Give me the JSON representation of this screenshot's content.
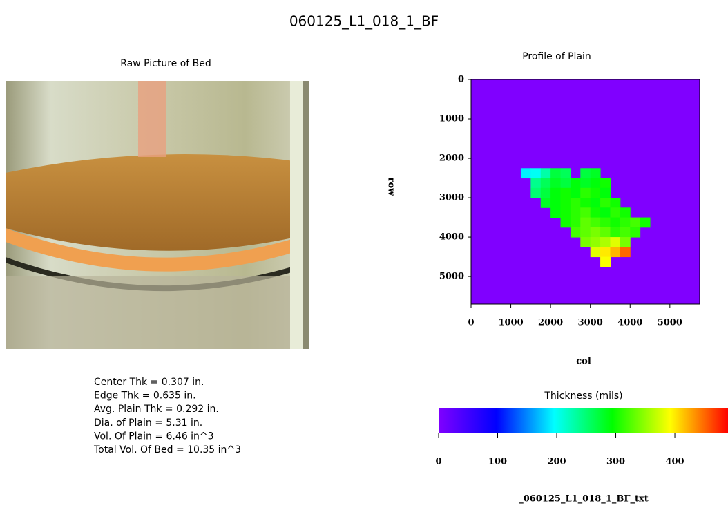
{
  "title": "060125_L1_018_1_BF",
  "photo": {
    "title": "Raw Picture of Bed"
  },
  "stats": [
    "Center Thk = 0.307 in.",
    "Edge Thk = 0.635 in.",
    "Avg. Plain Thk = 0.292 in.",
    "Dia. of Plain = 5.31 in.",
    "Vol. Of Plain = 6.46 in^3",
    "Total Vol. Of Bed = 10.35 in^3"
  ],
  "chart_data": {
    "type": "heatmap",
    "title": "Profile of Plain",
    "xlabel": "col",
    "ylabel": "row",
    "xlim": [
      0,
      5750
    ],
    "ylim": [
      0,
      5700
    ],
    "y_inverted": true,
    "xticks": [
      0,
      1000,
      2000,
      3000,
      4000,
      5000
    ],
    "yticks": [
      0,
      1000,
      2000,
      3000,
      4000,
      5000
    ],
    "cell": 250,
    "x": [
      1250,
      1500,
      1750,
      2000,
      2250,
      2500,
      2750,
      3000,
      3250,
      3500,
      3750,
      4000,
      4250
    ],
    "y": [
      2250,
      2500,
      2750,
      3000,
      3250,
      3500,
      3750,
      4000,
      4250,
      4500
    ],
    "z": [
      [
        190,
        200,
        230,
        270,
        260,
        null,
        270,
        280,
        null,
        null,
        null,
        null,
        null
      ],
      [
        null,
        240,
        260,
        280,
        270,
        290,
        280,
        290,
        300,
        null,
        null,
        null,
        null
      ],
      [
        null,
        250,
        270,
        290,
        300,
        290,
        310,
        300,
        290,
        null,
        null,
        null,
        null
      ],
      [
        null,
        null,
        280,
        290,
        300,
        310,
        300,
        290,
        310,
        300,
        null,
        null,
        null
      ],
      [
        null,
        null,
        null,
        290,
        300,
        310,
        320,
        300,
        290,
        310,
        300,
        null,
        null
      ],
      [
        null,
        null,
        null,
        null,
        300,
        310,
        330,
        320,
        310,
        300,
        310,
        320,
        300
      ],
      [
        null,
        null,
        null,
        null,
        null,
        320,
        330,
        340,
        330,
        310,
        320,
        310,
        null
      ],
      [
        null,
        null,
        null,
        null,
        null,
        null,
        340,
        350,
        360,
        380,
        340,
        null,
        null
      ],
      [
        null,
        null,
        null,
        null,
        null,
        null,
        null,
        380,
        400,
        420,
        450,
        null,
        null
      ],
      [
        null,
        null,
        null,
        null,
        null,
        null,
        null,
        null,
        390,
        null,
        null,
        null,
        null
      ]
    ],
    "colormap": [
      "#8000ff",
      "#0000ff",
      "#00ffff",
      "#00ff00",
      "#ffff00",
      "#ff0000"
    ],
    "colorbar": {
      "label": "Thickness (mils)",
      "clim": [
        0,
        490
      ],
      "ticks": [
        0,
        100,
        200,
        300,
        400
      ]
    },
    "footer": "_060125_L1_018_1_BF_txt"
  }
}
